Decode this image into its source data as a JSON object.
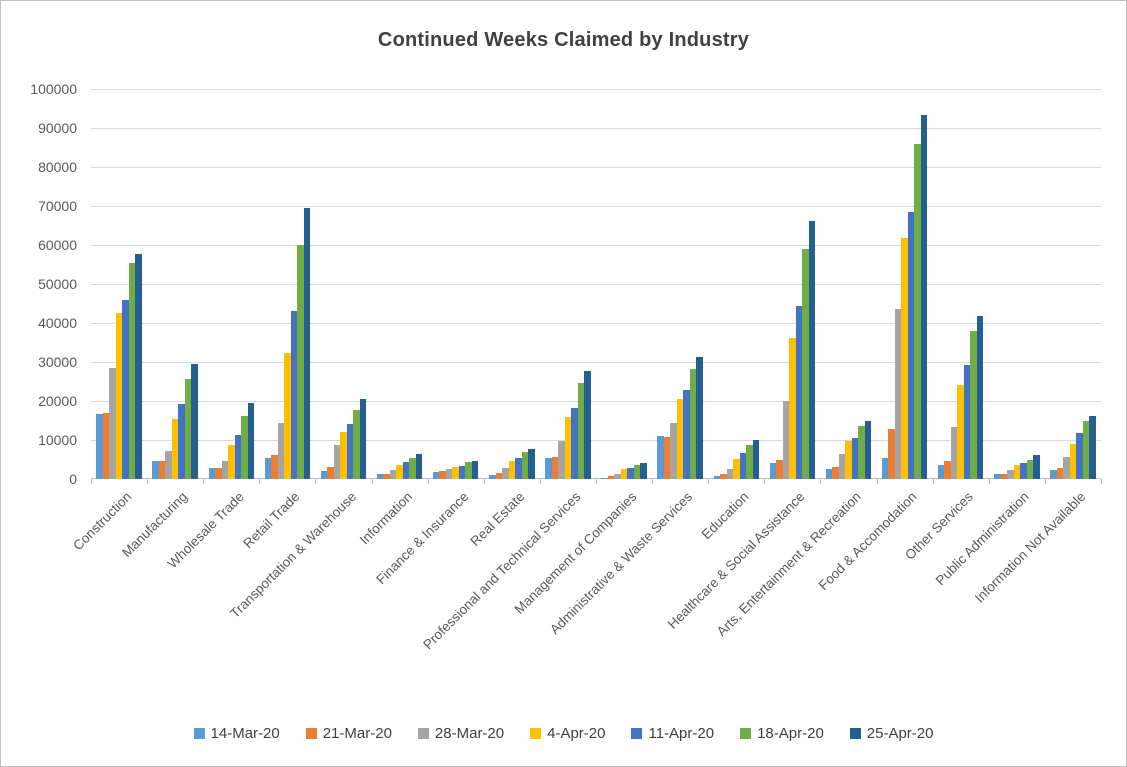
{
  "window": {
    "title": "Continued Weeks Claimed by Industry"
  },
  "chart_data": {
    "type": "bar",
    "title": "Continued Weeks Claimed by Industry",
    "xlabel": "",
    "ylabel": "",
    "ylim": [
      0,
      100000
    ],
    "ytick_step": 10000,
    "grid": true,
    "legend_position": "bottom",
    "categories": [
      "Construction",
      "Manufacturing",
      "Wholesale Trade",
      "Retail Trade",
      "Transportation & Warehouse",
      "Information",
      "Finance & Insurance",
      "Real Estate",
      "Professional and Technical Services",
      "Management of Companies",
      "Administrative & Waste Services",
      "Education",
      "Healthcare & Social Assistance",
      "Arts, Entertainment & Recreation",
      "Food & Accomodation",
      "Other Services",
      "Public Administration",
      "Information Not Available"
    ],
    "series": [
      {
        "name": "14-Mar-20",
        "color": "#5B9BD5",
        "values": [
          16700,
          4500,
          2700,
          5500,
          2100,
          1200,
          1900,
          1100,
          5400,
          300,
          11000,
          800,
          4000,
          2600,
          5500,
          3500,
          1300,
          2200
        ]
      },
      {
        "name": "21-Mar-20",
        "color": "#ED7D31",
        "values": [
          16900,
          4600,
          2900,
          6200,
          3100,
          1400,
          2000,
          1600,
          5700,
          800,
          10800,
          1200,
          5000,
          3200,
          12700,
          4600,
          1200,
          2900
        ]
      },
      {
        "name": "28-Mar-20",
        "color": "#A5A5A5",
        "values": [
          28500,
          7300,
          4700,
          14400,
          8600,
          2200,
          2500,
          2700,
          9700,
          1400,
          14400,
          2500,
          20000,
          6300,
          43700,
          13400,
          2200,
          5600
        ]
      },
      {
        "name": "4-Apr-20",
        "color": "#FFC000",
        "values": [
          42500,
          15400,
          8800,
          32400,
          12000,
          3600,
          3100,
          4600,
          15900,
          2500,
          20400,
          5200,
          36100,
          9700,
          61700,
          24000,
          3600,
          9100
        ]
      },
      {
        "name": "11-Apr-20",
        "color": "#4472C4",
        "values": [
          45900,
          19300,
          11300,
          43000,
          14200,
          4400,
          3400,
          5300,
          18100,
          2900,
          22700,
          6600,
          44400,
          10600,
          68400,
          29300,
          4200,
          11700
        ]
      },
      {
        "name": "18-Apr-20",
        "color": "#70AD47",
        "values": [
          55300,
          25700,
          16200,
          59900,
          17800,
          5400,
          4300,
          7000,
          24500,
          3600,
          28300,
          8700,
          58900,
          13600,
          85900,
          38000,
          5000,
          14800
        ]
      },
      {
        "name": "25-Apr-20",
        "color": "#255E91",
        "values": [
          57600,
          29400,
          19400,
          69500,
          20600,
          6400,
          4600,
          7800,
          27700,
          4200,
          31300,
          10000,
          66200,
          14800,
          93300,
          41800,
          6100,
          16200
        ]
      }
    ]
  },
  "style_colors": {
    "grid": "#D9D9D9",
    "axis": "#BFBFBF",
    "tick_label": "#595959",
    "title": "#404040",
    "background": "#FFFFFF"
  }
}
